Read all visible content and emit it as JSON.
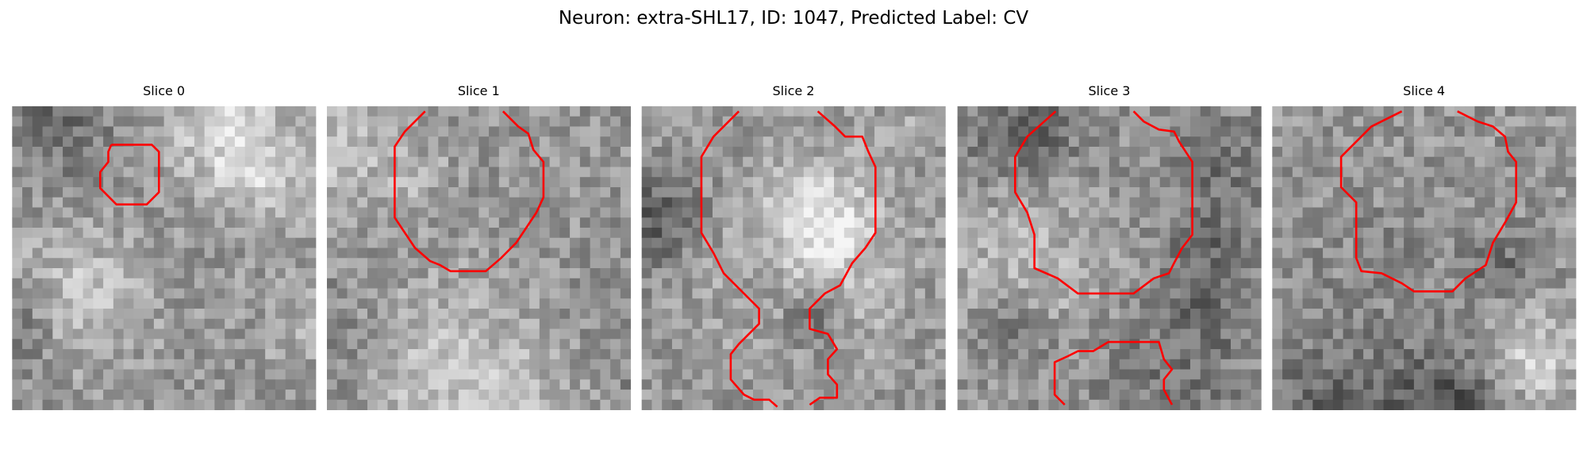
{
  "title": "Neuron: extra-SHL17, ID: 1047, Predicted Label: CV",
  "panels": [
    {
      "title": "Slice 0"
    },
    {
      "title": "Slice 1"
    },
    {
      "title": "Slice 2"
    },
    {
      "title": "Slice 3"
    },
    {
      "title": "Slice 4"
    }
  ]
}
